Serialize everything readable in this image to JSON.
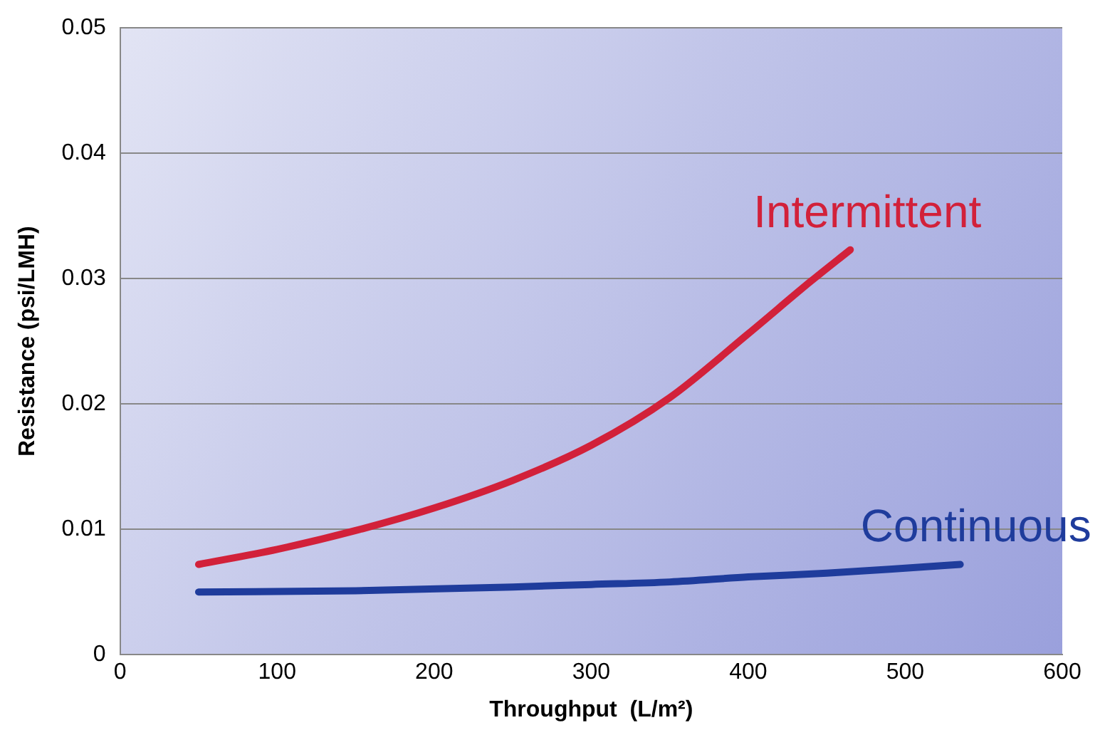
{
  "chart_data": {
    "type": "line",
    "xlabel": "Throughput  (L/m²)",
    "ylabel": "Resistance (psi/LMH)",
    "xlim": [
      0,
      600
    ],
    "xticks": [
      0,
      100,
      200,
      300,
      400,
      500,
      600
    ],
    "ylim": [
      0,
      0.05
    ],
    "yticks": [
      0,
      0.01,
      0.02,
      0.03,
      0.04,
      0.05
    ],
    "grid": "y",
    "legend": false,
    "marker": "none",
    "line_style": "solid",
    "series": [
      {
        "name": "Intermittent",
        "color": "#d2213a",
        "x": [
          50,
          100,
          150,
          200,
          250,
          300,
          350,
          400,
          440,
          465
        ],
        "values": [
          0.0072,
          0.0084,
          0.0099,
          0.0117,
          0.0139,
          0.0167,
          0.0205,
          0.0256,
          0.0298,
          0.0323
        ]
      },
      {
        "name": "Continuous",
        "color": "#1f3c9c",
        "x": [
          50,
          150,
          250,
          300,
          350,
          400,
          450,
          500,
          535
        ],
        "values": [
          0.005,
          0.0051,
          0.0054,
          0.0056,
          0.0058,
          0.0062,
          0.0065,
          0.0069,
          0.0072
        ]
      }
    ]
  }
}
